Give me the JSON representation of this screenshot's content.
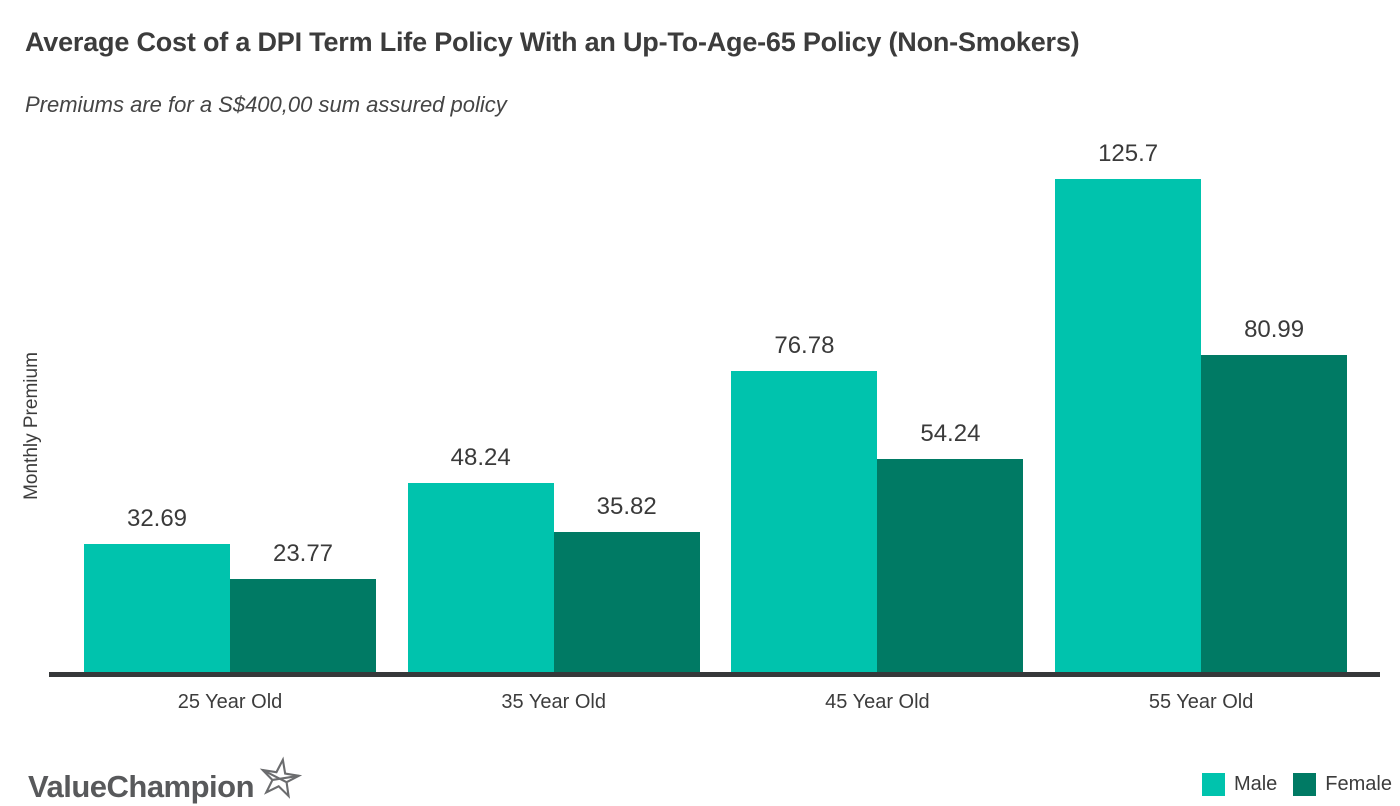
{
  "chart_data": {
    "type": "bar",
    "title": "Average Cost of a DPI Term Life Policy With an Up-To-Age-65 Policy (Non-Smokers)",
    "subtitle": "Premiums are for a S$400,00 sum assured policy",
    "ylabel": "Monthly Premium",
    "xlabel": "",
    "categories": [
      "25 Year Old",
      "35 Year Old",
      "45 Year Old",
      "55 Year Old"
    ],
    "series": [
      {
        "name": "Male",
        "color": "#00C3AD",
        "values": [
          32.69,
          48.24,
          76.78,
          125.7
        ]
      },
      {
        "name": "Female",
        "color": "#007A64",
        "values": [
          23.77,
          35.82,
          54.24,
          80.99
        ]
      }
    ],
    "ylim": [
      0,
      133
    ],
    "grid": false,
    "legend_position": "bottom-right",
    "axis_color": "#36383A",
    "label_color": "#3C3C3C"
  },
  "branding": {
    "logo_text": "ValueChampion",
    "star_icon": "star-outline-icon",
    "logo_color": "#58595B"
  }
}
